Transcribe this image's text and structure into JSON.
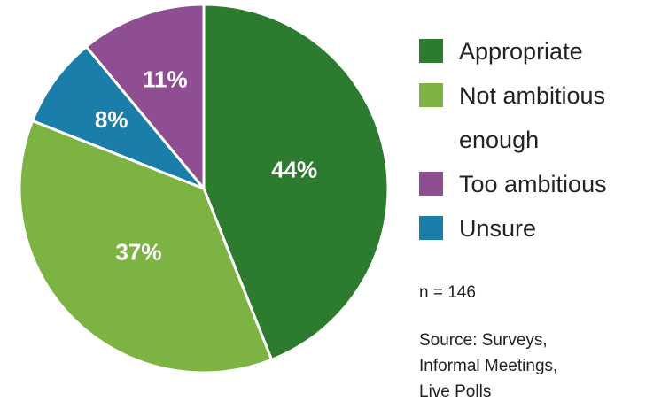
{
  "chart_data": {
    "type": "pie",
    "categories": [
      "Appropriate",
      "Not ambitious enough",
      "Unsure",
      "Too ambitious"
    ],
    "values": [
      44,
      37,
      8,
      11
    ],
    "value_labels": [
      "44%",
      "37%",
      "8%",
      "11%"
    ],
    "colors": [
      "#2d7b2f",
      "#7db343",
      "#1b7eaa",
      "#8e4e91"
    ],
    "note": "n = 146",
    "source": [
      "Source: Surveys,",
      "Informal Meetings,",
      "Live Polls"
    ]
  }
}
